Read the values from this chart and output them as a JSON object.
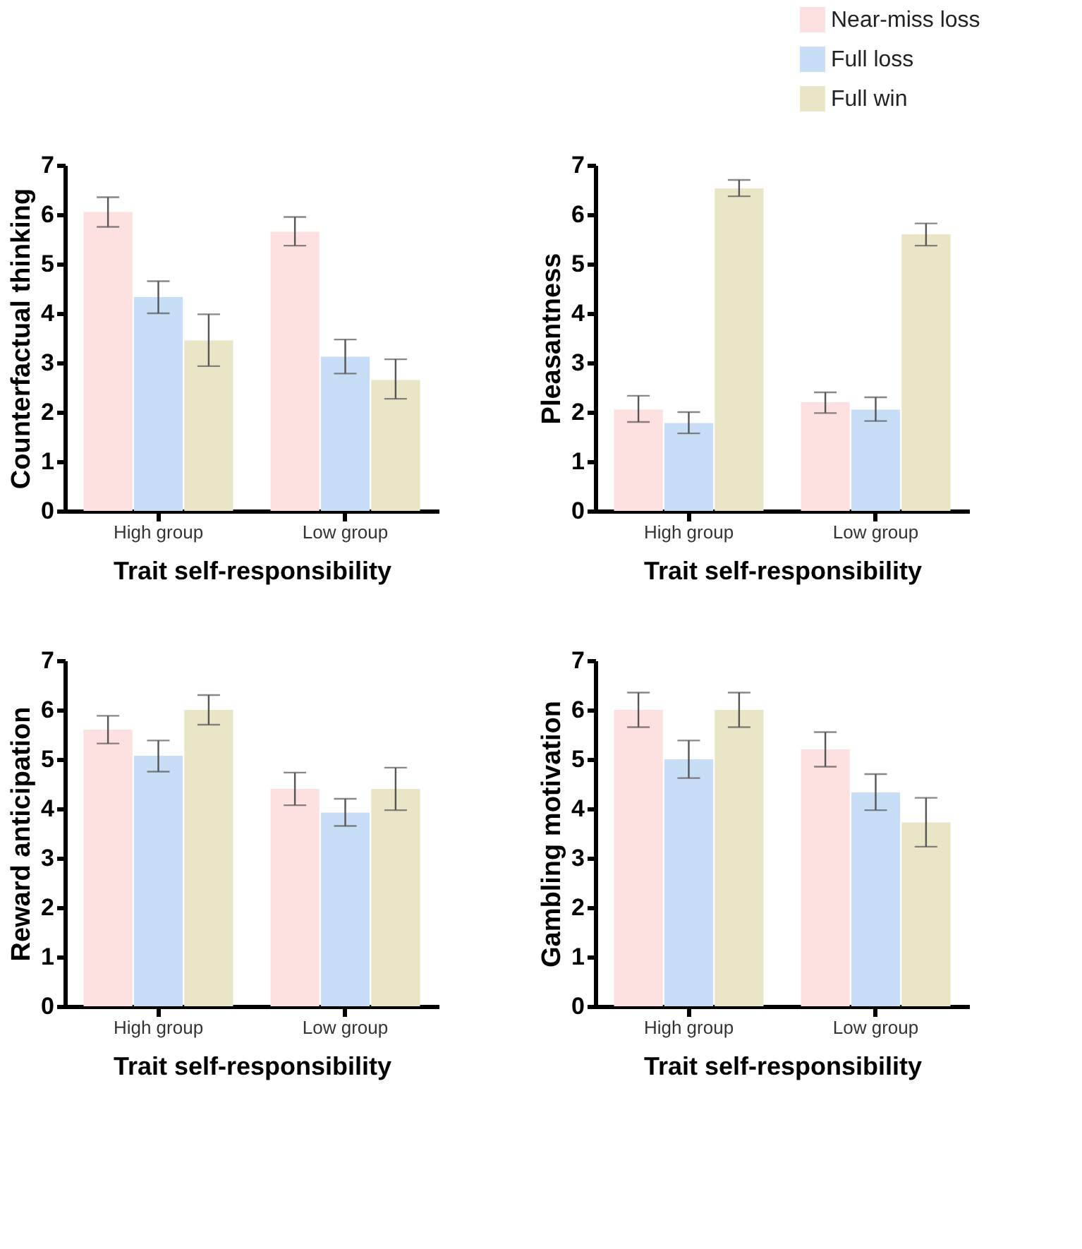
{
  "chart_data": [
    {
      "type": "bar",
      "categories": [
        "High group",
        "Low group"
      ],
      "xlabel": "Trait self-responsibility",
      "ylabel": "Counterfactual thinking",
      "ylim": [
        0,
        7
      ],
      "yticks": [
        0,
        1,
        2,
        3,
        4,
        5,
        6,
        7
      ],
      "grid": false,
      "series": [
        {
          "color": "#fde0e0",
          "values": [
            6.05,
            5.65
          ],
          "errors": [
            [
              5.75,
              6.35
            ],
            [
              5.37,
              5.95
            ]
          ]
        },
        {
          "color": "#c8ddf6",
          "values": [
            4.33,
            3.12
          ],
          "errors": [
            [
              4.0,
              4.65
            ],
            [
              2.78,
              3.47
            ]
          ]
        },
        {
          "color": "#ebe5c8",
          "values": [
            3.45,
            2.65
          ],
          "errors": [
            [
              2.93,
              3.98
            ],
            [
              2.27,
              3.07
            ]
          ]
        }
      ]
    },
    {
      "type": "bar",
      "categories": [
        "High group",
        "Low group"
      ],
      "xlabel": "Trait self-responsibility",
      "ylabel": "Pleasantness",
      "ylim": [
        0,
        7
      ],
      "yticks": [
        0,
        1,
        2,
        3,
        4,
        5,
        6,
        7
      ],
      "grid": false,
      "legend": "top right",
      "series": [
        {
          "name": "Near-miss loss",
          "color": "#fde0e0",
          "values": [
            2.05,
            2.2
          ],
          "errors": [
            [
              1.8,
              2.33
            ],
            [
              1.98,
              2.4
            ]
          ]
        },
        {
          "name": "Full loss",
          "color": "#c8ddf6",
          "values": [
            1.78,
            2.05
          ],
          "errors": [
            [
              1.57,
              2.0
            ],
            [
              1.82,
              2.3
            ]
          ]
        },
        {
          "name": "Full win",
          "color": "#ebe5c8",
          "values": [
            6.53,
            5.6
          ],
          "errors": [
            [
              6.37,
              6.7
            ],
            [
              5.37,
              5.82
            ]
          ]
        }
      ]
    },
    {
      "type": "bar",
      "categories": [
        "High group",
        "Low group"
      ],
      "xlabel": "Trait self-responsibility",
      "ylabel": "Reward anticipation",
      "ylim": [
        0,
        7
      ],
      "yticks": [
        0,
        1,
        2,
        3,
        4,
        5,
        6,
        7
      ],
      "grid": false,
      "series": [
        {
          "color": "#fde0e0",
          "values": [
            5.6,
            4.4
          ],
          "errors": [
            [
              5.32,
              5.88
            ],
            [
              4.07,
              4.73
            ]
          ]
        },
        {
          "color": "#c8ddf6",
          "values": [
            5.07,
            3.92
          ],
          "errors": [
            [
              4.75,
              5.38
            ],
            [
              3.65,
              4.2
            ]
          ]
        },
        {
          "color": "#ebe5c8",
          "values": [
            6.0,
            4.4
          ],
          "errors": [
            [
              5.7,
              6.3
            ],
            [
              3.97,
              4.83
            ]
          ]
        }
      ]
    },
    {
      "type": "bar",
      "categories": [
        "High group",
        "Low group"
      ],
      "xlabel": "Trait self-responsibility",
      "ylabel": "Gambling motivation",
      "ylim": [
        0,
        7
      ],
      "yticks": [
        0,
        1,
        2,
        3,
        4,
        5,
        6,
        7
      ],
      "grid": false,
      "series": [
        {
          "color": "#fde0e0",
          "values": [
            6.0,
            5.2
          ],
          "errors": [
            [
              5.65,
              6.35
            ],
            [
              4.85,
              5.55
            ]
          ]
        },
        {
          "color": "#c8ddf6",
          "values": [
            5.0,
            4.33
          ],
          "errors": [
            [
              4.62,
              5.38
            ],
            [
              3.97,
              4.7
            ]
          ]
        },
        {
          "color": "#ebe5c8",
          "values": [
            6.0,
            3.72
          ],
          "errors": [
            [
              5.65,
              6.35
            ],
            [
              3.23,
              4.22
            ]
          ]
        }
      ]
    }
  ]
}
